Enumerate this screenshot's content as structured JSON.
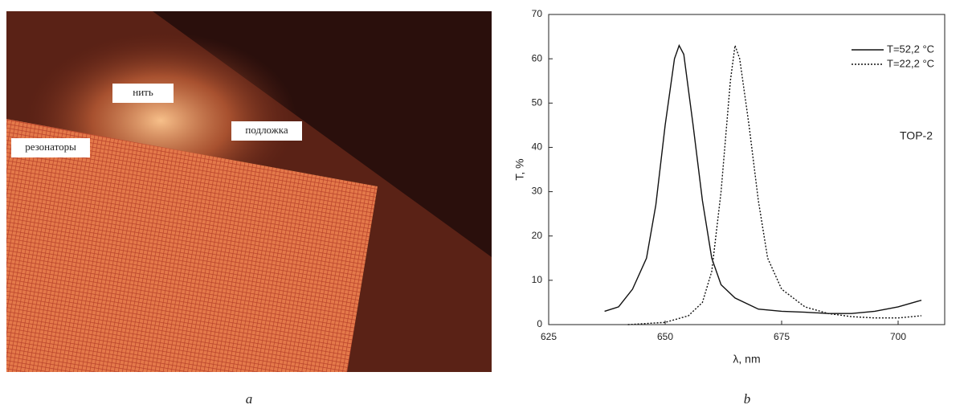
{
  "photo": {
    "labels": [
      "нить",
      "подложка",
      "резонаторы"
    ]
  },
  "captions": [
    "a",
    "b"
  ],
  "chart_data": {
    "type": "line",
    "xlabel": "λ, nm",
    "ylabel": "T, %",
    "annotation": "TOP-2",
    "xlim": [
      625,
      710
    ],
    "ylim": [
      0,
      70
    ],
    "xticks": [
      625,
      650,
      675,
      700
    ],
    "yticks": [
      0,
      10,
      20,
      30,
      40,
      50,
      60,
      70
    ],
    "legend": "upper right",
    "series": [
      {
        "name": "T=52,2 °C",
        "color": "#111111",
        "dash": "solid",
        "x": [
          637,
          640,
          643,
          646,
          648,
          650,
          652,
          653,
          654,
          656,
          658,
          660,
          662,
          665,
          670,
          675,
          680,
          685,
          690,
          695,
          700,
          705
        ],
        "values": [
          3,
          4,
          8,
          15,
          27,
          45,
          60,
          63,
          61,
          45,
          28,
          15,
          9,
          6,
          3.5,
          3,
          2.8,
          2.5,
          2.5,
          3,
          4,
          5.5
        ]
      },
      {
        "name": "T=22,2 °C",
        "color": "#111111",
        "dash": "dotted",
        "x": [
          642,
          650,
          655,
          658,
          660,
          662,
          664,
          665,
          666,
          668,
          670,
          672,
          675,
          680,
          685,
          690,
          695,
          700,
          705
        ],
        "values": [
          0,
          0.5,
          2,
          5,
          12,
          30,
          55,
          63,
          60,
          45,
          28,
          15,
          8,
          4,
          2.5,
          1.8,
          1.5,
          1.5,
          2
        ]
      }
    ]
  }
}
